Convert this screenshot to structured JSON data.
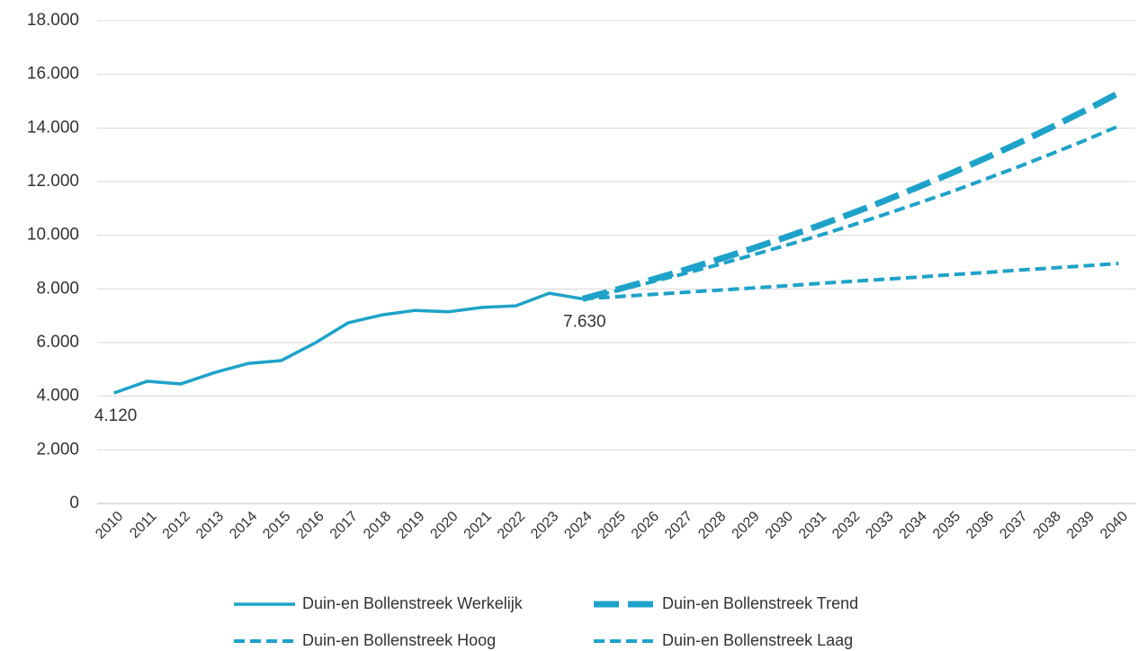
{
  "chart_data": {
    "type": "line",
    "categories": [
      "2010",
      "2011",
      "2012",
      "2013",
      "2014",
      "2015",
      "2016",
      "2017",
      "2018",
      "2019",
      "2020",
      "2021",
      "2022",
      "2023",
      "2024",
      "2025",
      "2026",
      "2027",
      "2028",
      "2029",
      "2030",
      "2031",
      "2032",
      "2033",
      "2034",
      "2035",
      "2036",
      "2037",
      "2038",
      "2039",
      "2040"
    ],
    "series": [
      {
        "name": "Duin-en Bollenstreek Werkelijk",
        "color": "#1ea2c9",
        "dash": "solid",
        "values": [
          4120,
          4560,
          4460,
          4880,
          5220,
          5330,
          5980,
          6740,
          7030,
          7200,
          7150,
          7310,
          7370,
          7840,
          7630,
          null,
          null,
          null,
          null,
          null,
          null,
          null,
          null,
          null,
          null,
          null,
          null,
          null,
          null,
          null,
          null
        ],
        "value_labels": [
          "4.120",
          null,
          null,
          null,
          null,
          null,
          null,
          null,
          null,
          null,
          null,
          null,
          null,
          null,
          "7.630",
          null,
          null,
          null,
          null,
          null,
          null,
          null,
          null,
          null,
          null,
          null,
          null,
          null,
          null,
          null,
          null
        ]
      },
      {
        "name": "Duin-en Bollenstreek Trend",
        "color": "#1ea2c9",
        "dash": "long-dash",
        "values": [
          null,
          null,
          null,
          null,
          null,
          null,
          null,
          null,
          null,
          null,
          null,
          null,
          null,
          null,
          7630,
          7970,
          8320,
          8690,
          9080,
          9480,
          9900,
          10340,
          10800,
          11280,
          11790,
          12310,
          12860,
          13430,
          14030,
          14650,
          15300
        ]
      },
      {
        "name": "Duin-en Bollenstreek Hoog",
        "color": "#1ea2c9",
        "dash": "dash",
        "values": [
          null,
          null,
          null,
          null,
          null,
          null,
          null,
          null,
          null,
          null,
          null,
          null,
          null,
          null,
          7630,
          7930,
          8240,
          8560,
          8890,
          9240,
          9600,
          9970,
          10360,
          10770,
          11190,
          11620,
          12080,
          12550,
          13040,
          13540,
          14070
        ]
      },
      {
        "name": "Duin-en Bollenstreek Laag",
        "color": "#1ea2c9",
        "dash": "dash",
        "values": [
          null,
          null,
          null,
          null,
          null,
          null,
          null,
          null,
          null,
          null,
          null,
          null,
          null,
          null,
          7630,
          7710,
          7790,
          7870,
          7950,
          8030,
          8110,
          8200,
          8280,
          8360,
          8440,
          8530,
          8610,
          8700,
          8780,
          8860,
          8950
        ]
      }
    ],
    "ylim": [
      0,
      18000
    ],
    "yticks": [
      0,
      {
        "value": 2000,
        "label": "2.000"
      },
      {
        "value": 4000,
        "label": "4.000"
      },
      {
        "value": 6000,
        "label": "6.000"
      },
      {
        "value": 8000,
        "label": "8.000"
      },
      {
        "value": 10000,
        "label": "10.000"
      },
      {
        "value": 12000,
        "label": "12.000"
      },
      {
        "value": 14000,
        "label": "14.000"
      },
      {
        "value": 16000,
        "label": "16.000"
      },
      {
        "value": 18000,
        "label": "18.000"
      }
    ],
    "grid": true,
    "legend": "bottom"
  }
}
